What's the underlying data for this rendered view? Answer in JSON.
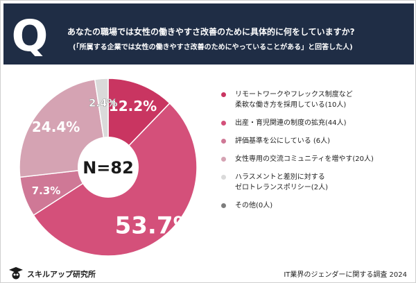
{
  "header": {
    "q_letter": "Q",
    "title": "あなたの職場では女性の働きやすさ改善のために具体的に何をしていますか?",
    "subtitle": "(「所属する企業では女性の働きやすさ改善のためにやっていることがある」と回答した人)"
  },
  "chart_data": {
    "type": "pie",
    "variant": "donut",
    "center_label": "N=82",
    "slices": [
      {
        "label": "リモートワークやフレックス制度など\n柔軟な働き方を採用している(10人)",
        "value": 12.2,
        "display": "12.2%",
        "color": "#c93561"
      },
      {
        "label": "出産・育児関連の制度の拡充(44人)",
        "value": 53.7,
        "display": "53.7%",
        "color": "#d4507a"
      },
      {
        "label": "評価基準を公にしている (6人)",
        "value": 7.3,
        "display": "7.3%",
        "color": "#cf7896"
      },
      {
        "label": "女性専用の交流コミュニティを増やす(20人)",
        "value": 24.4,
        "display": "24.4%",
        "color": "#d5a3b3"
      },
      {
        "label": "ハラスメントと差別に対する\nゼロトレランスポリシー(2人)",
        "value": 2.4,
        "display": "2.4%",
        "color": "#dadada"
      },
      {
        "label": "その他(0人)",
        "value": 0,
        "display": "",
        "color": "#7d7d7d"
      }
    ]
  },
  "footer": {
    "logo_text": "スキルアップ研究所",
    "source": "IT業界のジェンダーに関する調査 2024"
  }
}
